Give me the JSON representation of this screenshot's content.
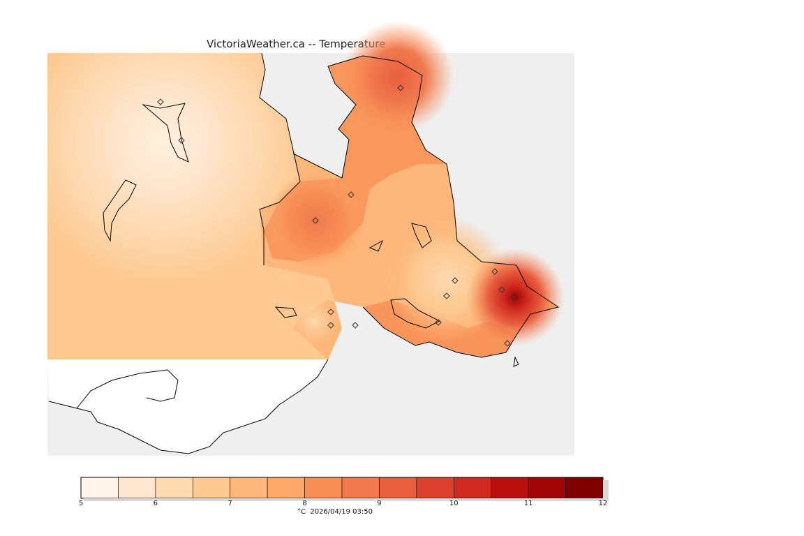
{
  "header": {
    "title": "VictoriaWeather.ca -- Temperature"
  },
  "map": {
    "background_color": "#efefef",
    "land_unmapped_color": "#ffffff",
    "coastline_color": "#000000",
    "station_marker": "diamond-icon"
  },
  "legend": {
    "unit": "°C",
    "min": 5,
    "max": 12,
    "step": 0.5,
    "tick_labels": [
      "5",
      "6",
      "7",
      "8",
      "9",
      "10",
      "11",
      "12"
    ],
    "colors": [
      "#fff5eb",
      "#fee6ce",
      "#fdd9b0",
      "#fdc991",
      "#fdb77a",
      "#fda769",
      "#f88f55",
      "#f07a4e",
      "#e85f3f",
      "#dd4230",
      "#cf2a20",
      "#bb1010",
      "#a00404",
      "#7e0000"
    ],
    "timestamp": "2026/04/19 03:50"
  },
  "footer": {
    "caption": "°C  2026/04/19 03:50"
  }
}
